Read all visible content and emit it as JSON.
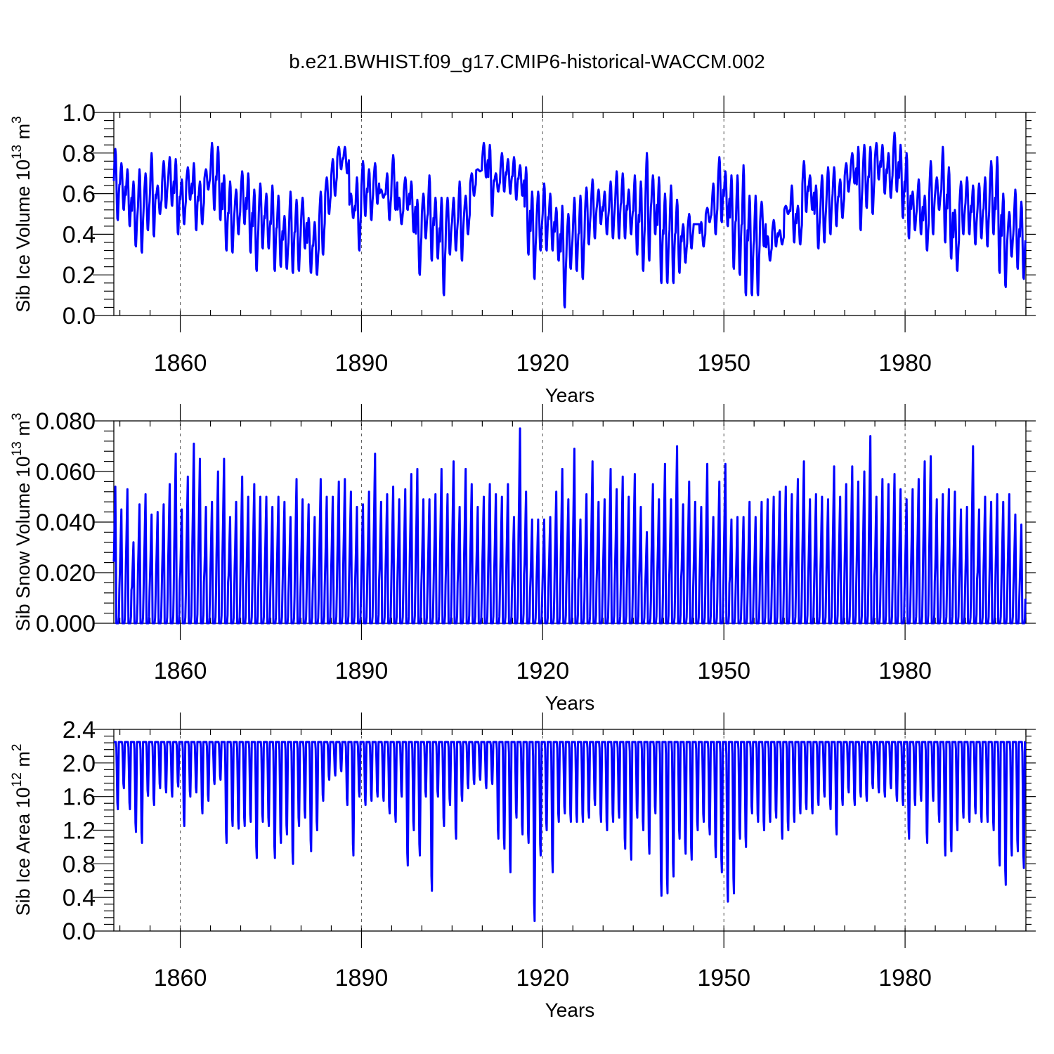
{
  "chart_data": [
    {
      "type": "line",
      "title": "b.e21.BWHIST.f09_g17.CMIP6-historical-WACCM.002",
      "xlabel": "Years",
      "ylabel": "Sib Ice Volume 10",
      "ylabel_exp": "13",
      "ylabel_unit": " m",
      "ylabel_unit_exp": "3",
      "xlim": [
        1849,
        2000
      ],
      "ylim": [
        0.0,
        1.0
      ],
      "xticks": [
        "1860",
        "1890",
        "1920",
        "1950",
        "1980"
      ],
      "yticks": [
        "0.0",
        "0.2",
        "0.4",
        "0.6",
        "0.8",
        "1.0"
      ],
      "series": [
        {
          "name": "Sib Ice Volume",
          "monthly": true,
          "annual_max": [
            0.82,
            0.75,
            0.72,
            0.66,
            0.72,
            0.7,
            0.8,
            0.64,
            0.76,
            0.78,
            0.77,
            0.67,
            0.73,
            0.75,
            0.66,
            0.72,
            0.85,
            0.83,
            0.69,
            0.66,
            0.62,
            0.71,
            0.7,
            0.62,
            0.65,
            0.6,
            0.64,
            0.59,
            0.49,
            0.61,
            0.57,
            0.58,
            0.48,
            0.46,
            0.61,
            0.68,
            0.77,
            0.83,
            0.83,
            0.6,
            0.68,
            0.76,
            0.72,
            0.75,
            0.62,
            0.7,
            0.79,
            0.58,
            0.68,
            0.66,
            0.57,
            0.6,
            0.69,
            0.58,
            0.58,
            0.58,
            0.58,
            0.66,
            0.59,
            0.7,
            0.72,
            0.85,
            0.84,
            0.7,
            0.8,
            0.77,
            0.78,
            0.74,
            0.73,
            0.61,
            0.61,
            0.65,
            0.6,
            0.53,
            0.54,
            0.5,
            0.58,
            0.59,
            0.63,
            0.67,
            0.62,
            0.61,
            0.66,
            0.71,
            0.7,
            0.62,
            0.69,
            0.66,
            0.8,
            0.69,
            0.68,
            0.6,
            0.64,
            0.57,
            0.45,
            0.5,
            0.45,
            0.46,
            0.53,
            0.65,
            0.78,
            0.71,
            0.69,
            0.69,
            0.74,
            0.59,
            0.59,
            0.56,
            0.39,
            0.47,
            0.42,
            0.54,
            0.64,
            0.54,
            0.76,
            0.69,
            0.64,
            0.69,
            0.73,
            0.73,
            0.67,
            0.75,
            0.8,
            0.83,
            0.84,
            0.83,
            0.85,
            0.84,
            0.8,
            0.9,
            0.84,
            0.8,
            0.61,
            0.67,
            0.59,
            0.76,
            0.68,
            0.83,
            0.73,
            0.52,
            0.66,
            0.68,
            0.64,
            0.65,
            0.68,
            0.76,
            0.78,
            0.6,
            0.51,
            0.62,
            0.56,
            0.54
          ],
          "annual_min": [
            0.47,
            0.52,
            0.44,
            0.34,
            0.31,
            0.42,
            0.39,
            0.5,
            0.53,
            0.54,
            0.4,
            0.45,
            0.57,
            0.42,
            0.45,
            0.62,
            0.52,
            0.47,
            0.32,
            0.31,
            0.4,
            0.45,
            0.31,
            0.22,
            0.33,
            0.33,
            0.22,
            0.24,
            0.23,
            0.21,
            0.22,
            0.33,
            0.21,
            0.2,
            0.3,
            0.5,
            0.59,
            0.72,
            0.7,
            0.48,
            0.32,
            0.49,
            0.47,
            0.55,
            0.58,
            0.47,
            0.52,
            0.45,
            0.52,
            0.41,
            0.2,
            0.38,
            0.27,
            0.28,
            0.1,
            0.3,
            0.32,
            0.27,
            0.4,
            0.59,
            0.71,
            0.68,
            0.49,
            0.61,
            0.61,
            0.6,
            0.57,
            0.59,
            0.3,
            0.18,
            0.32,
            0.32,
            0.32,
            0.27,
            0.04,
            0.23,
            0.22,
            0.18,
            0.35,
            0.38,
            0.45,
            0.4,
            0.38,
            0.38,
            0.38,
            0.4,
            0.3,
            0.22,
            0.27,
            0.4,
            0.16,
            0.16,
            0.16,
            0.21,
            0.26,
            0.33,
            0.45,
            0.34,
            0.46,
            0.4,
            0.46,
            0.44,
            0.23,
            0.2,
            0.1,
            0.1,
            0.1,
            0.34,
            0.27,
            0.34,
            0.35,
            0.5,
            0.36,
            0.35,
            0.51,
            0.52,
            0.33,
            0.36,
            0.4,
            0.44,
            0.48,
            0.61,
            0.65,
            0.42,
            0.53,
            0.5,
            0.67,
            0.6,
            0.58,
            0.61,
            0.48,
            0.38,
            0.42,
            0.4,
            0.32,
            0.4,
            0.52,
            0.36,
            0.28,
            0.22,
            0.4,
            0.4,
            0.35,
            0.38,
            0.34,
            0.4,
            0.21,
            0.14,
            0.29,
            0.23,
            0.18
          ]
        }
      ]
    },
    {
      "type": "line",
      "xlabel": "Years",
      "ylabel": "Sib Snow Volume 10",
      "ylabel_exp": "13",
      "ylabel_unit": " m",
      "ylabel_unit_exp": "3",
      "xlim": [
        1849,
        2000
      ],
      "ylim": [
        0.0,
        0.08
      ],
      "xticks": [
        "1860",
        "1890",
        "1920",
        "1950",
        "1980"
      ],
      "yticks": [
        "0.000",
        "0.020",
        "0.040",
        "0.060",
        "0.080"
      ],
      "series": [
        {
          "name": "Sib Snow Volume",
          "monthly": true,
          "annual_max": [
            0.054,
            0.045,
            0.053,
            0.032,
            0.047,
            0.051,
            0.043,
            0.044,
            0.047,
            0.055,
            0.067,
            0.045,
            0.058,
            0.071,
            0.065,
            0.046,
            0.048,
            0.06,
            0.065,
            0.042,
            0.048,
            0.058,
            0.05,
            0.055,
            0.05,
            0.05,
            0.046,
            0.05,
            0.048,
            0.042,
            0.057,
            0.049,
            0.047,
            0.042,
            0.057,
            0.05,
            0.05,
            0.056,
            0.057,
            0.052,
            0.046,
            0.047,
            0.052,
            0.067,
            0.048,
            0.051,
            0.054,
            0.049,
            0.053,
            0.059,
            0.061,
            0.049,
            0.049,
            0.051,
            0.061,
            0.051,
            0.064,
            0.046,
            0.061,
            0.055,
            0.046,
            0.05,
            0.055,
            0.051,
            0.05,
            0.055,
            0.042,
            0.077,
            0.052,
            0.041,
            0.041,
            0.041,
            0.042,
            0.052,
            0.061,
            0.049,
            0.069,
            0.041,
            0.051,
            0.064,
            0.048,
            0.049,
            0.061,
            0.053,
            0.058,
            0.05,
            0.059,
            0.046,
            0.036,
            0.055,
            0.049,
            0.063,
            0.049,
            0.07,
            0.047,
            0.056,
            0.048,
            0.046,
            0.063,
            0.042,
            0.056,
            0.063,
            0.041,
            0.042,
            0.042,
            0.048,
            0.042,
            0.048,
            0.049,
            0.05,
            0.052,
            0.054,
            0.051,
            0.057,
            0.064,
            0.049,
            0.051,
            0.05,
            0.049,
            0.062,
            0.05,
            0.055,
            0.062,
            0.056,
            0.06,
            0.074,
            0.05,
            0.057,
            0.055,
            0.059,
            0.053,
            0.049,
            0.053,
            0.057,
            0.064,
            0.066,
            0.049,
            0.051,
            0.053,
            0.052,
            0.045,
            0.046,
            0.07,
            0.045,
            0.05,
            0.048,
            0.051,
            0.048,
            0.051,
            0.043,
            0.039
          ],
          "annual_min": [
            0.0
          ]
        }
      ]
    },
    {
      "type": "line",
      "xlabel": "Years",
      "ylabel": "Sib Ice Area 10",
      "ylabel_exp": "12",
      "ylabel_unit": " m",
      "ylabel_unit_exp": "2",
      "xlim": [
        1849,
        2000
      ],
      "ylim": [
        0.0,
        2.4
      ],
      "xticks": [
        "1860",
        "1890",
        "1920",
        "1950",
        "1980"
      ],
      "yticks": [
        "0.0",
        "0.4",
        "0.8",
        "1.2",
        "1.6",
        "2.0",
        "2.4"
      ],
      "series": [
        {
          "name": "Sib Ice Area",
          "monthly": true,
          "annual_max": [
            2.25
          ],
          "annual_min": [
            1.45,
            1.7,
            1.45,
            1.18,
            1.05,
            1.61,
            1.5,
            1.7,
            1.65,
            1.6,
            1.72,
            1.25,
            1.6,
            1.65,
            1.4,
            1.55,
            1.75,
            1.8,
            1.05,
            1.25,
            1.22,
            1.25,
            1.3,
            0.87,
            1.3,
            1.25,
            0.87,
            1.05,
            1.15,
            0.8,
            1.25,
            1.35,
            0.95,
            1.2,
            1.55,
            1.8,
            1.85,
            1.9,
            1.5,
            0.9,
            1.6,
            1.5,
            1.55,
            1.6,
            1.55,
            1.4,
            1.3,
            1.6,
            0.78,
            1.2,
            0.9,
            1.6,
            0.48,
            1.6,
            1.25,
            1.5,
            1.1,
            1.55,
            1.7,
            1.75,
            1.8,
            1.7,
            1.75,
            1.1,
            0.98,
            0.7,
            1.35,
            1.15,
            1.05,
            0.12,
            0.9,
            1.2,
            0.7,
            1.3,
            1.4,
            1.3,
            1.3,
            1.3,
            1.35,
            1.5,
            1.3,
            1.2,
            1.3,
            1.35,
            0.98,
            0.85,
            1.35,
            1.2,
            0.92,
            1.4,
            0.42,
            0.45,
            0.65,
            1.1,
            0.92,
            0.85,
            1.2,
            1.3,
            1.15,
            0.88,
            0.7,
            0.35,
            0.45,
            1.1,
            1.0,
            1.4,
            1.3,
            1.2,
            1.3,
            1.35,
            1.1,
            1.2,
            1.3,
            1.4,
            1.45,
            1.4,
            1.5,
            1.6,
            1.45,
            1.15,
            1.5,
            1.65,
            1.5,
            1.6,
            1.55,
            1.7,
            1.65,
            1.6,
            1.7,
            1.55,
            1.5,
            1.1,
            1.5,
            1.55,
            1.05,
            1.55,
            1.3,
            0.9,
            0.95,
            1.2,
            1.35,
            1.3,
            1.4,
            1.3,
            1.3,
            1.2,
            0.78,
            0.55,
            0.9,
            0.95,
            0.75
          ]
        }
      ]
    }
  ]
}
